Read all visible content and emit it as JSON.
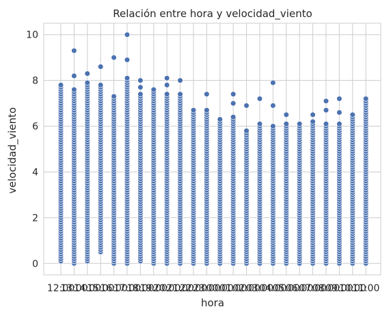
{
  "chart_data": {
    "type": "scatter",
    "title": "Relación entre hora y velocidad_viento",
    "xlabel": "hora",
    "ylabel": "velocidad_viento",
    "x_categories": [
      "12:00",
      "13:00",
      "14:00",
      "15:00",
      "16:00",
      "17:00",
      "18:00",
      "19:00",
      "20:00",
      "21:00",
      "22:00",
      "23:00",
      "00:00",
      "01:00",
      "02:00",
      "03:00",
      "04:00",
      "05:00",
      "06:00",
      "07:00",
      "08:00",
      "09:00",
      "10:00",
      "11:00"
    ],
    "y_ticks": [
      0,
      2,
      4,
      6,
      8,
      10
    ],
    "ylim": [
      -0.5,
      10.5
    ],
    "grid": true,
    "marker_color": "#4c72b0",
    "column_ranges": [
      {
        "hora": "12:00",
        "min": 0.1,
        "max": 7.8
      },
      {
        "hora": "13:00",
        "min": 0.0,
        "max": 7.6
      },
      {
        "hora": "14:00",
        "min": 0.1,
        "max": 7.9
      },
      {
        "hora": "15:00",
        "min": 0.5,
        "max": 7.8
      },
      {
        "hora": "16:00",
        "min": 0.0,
        "max": 7.3
      },
      {
        "hora": "17:00",
        "min": 0.0,
        "max": 8.1
      },
      {
        "hora": "18:00",
        "min": 0.1,
        "max": 7.4
      },
      {
        "hora": "19:00",
        "min": 0.0,
        "max": 7.6
      },
      {
        "hora": "20:00",
        "min": 0.0,
        "max": 7.4
      },
      {
        "hora": "21:00",
        "min": 0.0,
        "max": 7.4
      },
      {
        "hora": "22:00",
        "min": 0.0,
        "max": 6.7
      },
      {
        "hora": "23:00",
        "min": 0.0,
        "max": 6.7
      },
      {
        "hora": "00:00",
        "min": 0.0,
        "max": 6.3
      },
      {
        "hora": "01:00",
        "min": 0.0,
        "max": 6.4
      },
      {
        "hora": "02:00",
        "min": 0.0,
        "max": 5.8
      },
      {
        "hora": "03:00",
        "min": 0.0,
        "max": 6.1
      },
      {
        "hora": "04:00",
        "min": 0.0,
        "max": 6.0
      },
      {
        "hora": "05:00",
        "min": 0.0,
        "max": 6.1
      },
      {
        "hora": "06:00",
        "min": 0.0,
        "max": 6.1
      },
      {
        "hora": "07:00",
        "min": 0.0,
        "max": 6.2
      },
      {
        "hora": "08:00",
        "min": 0.0,
        "max": 6.1
      },
      {
        "hora": "09:00",
        "min": 0.0,
        "max": 6.1
      },
      {
        "hora": "10:00",
        "min": 0.0,
        "max": 6.5
      },
      {
        "hora": "11:00",
        "min": 0.0,
        "max": 7.2
      }
    ],
    "outliers": [
      {
        "hora": "13:00",
        "values": [
          9.3,
          8.2
        ]
      },
      {
        "hora": "14:00",
        "values": [
          8.3
        ]
      },
      {
        "hora": "15:00",
        "values": [
          8.6
        ]
      },
      {
        "hora": "16:00",
        "values": [
          9.0
        ]
      },
      {
        "hora": "17:00",
        "values": [
          10.0,
          8.9
        ]
      },
      {
        "hora": "18:00",
        "values": [
          8.0,
          7.7
        ]
      },
      {
        "hora": "20:00",
        "values": [
          8.1,
          7.8
        ]
      },
      {
        "hora": "21:00",
        "values": [
          8.0
        ]
      },
      {
        "hora": "23:00",
        "values": [
          7.4
        ]
      },
      {
        "hora": "01:00",
        "values": [
          7.4,
          7.0
        ]
      },
      {
        "hora": "02:00",
        "values": [
          6.9
        ]
      },
      {
        "hora": "03:00",
        "values": [
          7.2
        ]
      },
      {
        "hora": "04:00",
        "values": [
          7.9,
          6.9
        ]
      },
      {
        "hora": "05:00",
        "values": [
          6.5
        ]
      },
      {
        "hora": "07:00",
        "values": [
          6.5
        ]
      },
      {
        "hora": "08:00",
        "values": [
          7.1,
          6.7
        ]
      },
      {
        "hora": "09:00",
        "values": [
          7.2,
          6.6
        ]
      }
    ]
  }
}
